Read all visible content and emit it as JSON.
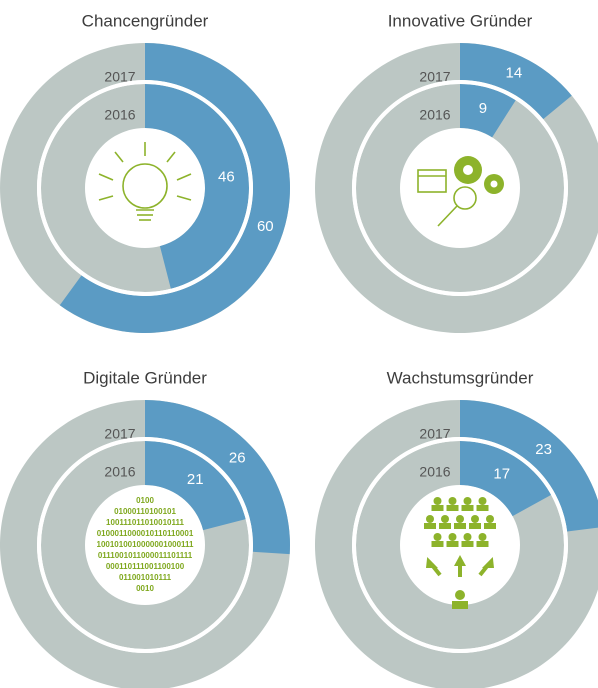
{
  "chart_data": [
    {
      "type": "donut",
      "title": "Chancengründer",
      "series": [
        {
          "name": "2017",
          "color": "#5b9bc4",
          "values": [
            60
          ]
        },
        {
          "name": "2016",
          "color": "#5b9bc4",
          "values": [
            46
          ]
        }
      ]
    },
    {
      "type": "donut",
      "title": "Innovative Gründer",
      "series": [
        {
          "name": "2017",
          "color": "#5b9bc4",
          "values": [
            14
          ]
        },
        {
          "name": "2016",
          "color": "#5b9bc4",
          "values": [
            9
          ]
        }
      ]
    },
    {
      "type": "donut",
      "title": "Digitale Gründer",
      "series": [
        {
          "name": "2017",
          "color": "#5b9bc4",
          "values": [
            26
          ]
        },
        {
          "name": "2016",
          "color": "#5b9bc4",
          "values": [
            21
          ]
        }
      ],
      "annotations": [
        "0100",
        "01000110100101",
        "100111011010010111",
        "0100011000010110110001",
        "1001010010000001000111",
        "0111001011000011101111",
        "000110111001100100",
        "011001010111",
        "0010"
      ]
    },
    {
      "type": "donut",
      "title": "Wachstumsgründer",
      "series": [
        {
          "name": "2017",
          "color": "#5b9bc4",
          "values": [
            23
          ]
        },
        {
          "name": "2016",
          "color": "#5b9bc4",
          "values": [
            17
          ]
        }
      ]
    }
  ]
}
